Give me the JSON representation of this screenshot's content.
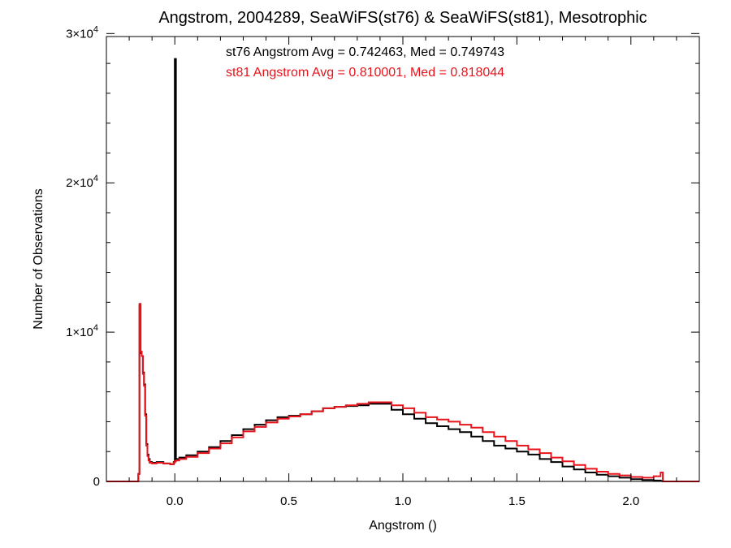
{
  "chart_data": {
    "type": "histogram",
    "title": "Angstrom, 2004289, SeaWiFS(st76) & SeaWiFS(st81), Mesotrophic",
    "xlabel": "Angstrom ()",
    "ylabel": "Number of Observations",
    "xlim": [
      -0.3,
      2.3
    ],
    "ylim": [
      0,
      30000
    ],
    "x_ticks": [
      {
        "value": 0.0,
        "label": "0.0"
      },
      {
        "value": 0.5,
        "label": "0.5"
      },
      {
        "value": 1.0,
        "label": "1.0"
      },
      {
        "value": 1.5,
        "label": "1.5"
      },
      {
        "value": 2.0,
        "label": "2.0"
      }
    ],
    "y_ticks": [
      {
        "value": 0,
        "label": "0"
      },
      {
        "value": 10000,
        "label": "1×10",
        "exp": "4"
      },
      {
        "value": 20000,
        "label": "2×10",
        "exp": "4"
      },
      {
        "value": 30000,
        "label": "3×10",
        "exp": "4"
      }
    ],
    "annotations": [
      {
        "text": "st76 Angstrom Avg = 0.742463, Med = 0.749743",
        "color": "#000000"
      },
      {
        "text": "st81 Angstrom Avg = 0.810001, Med = 0.818044",
        "color": "#e8141c"
      }
    ],
    "series": [
      {
        "color": "#000000",
        "x": [
          -0.3,
          -0.17,
          -0.16,
          -0.155,
          -0.15,
          -0.145,
          -0.14,
          -0.135,
          -0.13,
          -0.125,
          -0.12,
          -0.115,
          -0.11,
          -0.1,
          -0.08,
          -0.05,
          -0.02,
          -0.005,
          0.0,
          0.005,
          0.02,
          0.05,
          0.1,
          0.15,
          0.2,
          0.25,
          0.3,
          0.35,
          0.4,
          0.45,
          0.5,
          0.55,
          0.6,
          0.65,
          0.7,
          0.75,
          0.8,
          0.85,
          0.9,
          0.95,
          1.0,
          1.05,
          1.1,
          1.15,
          1.2,
          1.25,
          1.3,
          1.35,
          1.4,
          1.45,
          1.5,
          1.55,
          1.6,
          1.65,
          1.7,
          1.75,
          1.8,
          1.85,
          1.9,
          1.95,
          2.0,
          2.05,
          2.1,
          2.13,
          2.14,
          2.15,
          2.3
        ],
        "y": [
          0,
          0,
          500,
          11800,
          8600,
          8400,
          7300,
          6500,
          4500,
          2500,
          1800,
          1500,
          1300,
          1250,
          1300,
          1200,
          1150,
          1300,
          28300,
          1500,
          1600,
          1750,
          2000,
          2300,
          2700,
          3100,
          3500,
          3800,
          4100,
          4300,
          4400,
          4500,
          4700,
          4900,
          5000,
          5050,
          5100,
          5200,
          5200,
          4800,
          4500,
          4200,
          3900,
          3700,
          3500,
          3300,
          3000,
          2700,
          2400,
          2200,
          2000,
          1800,
          1500,
          1300,
          1000,
          800,
          600,
          450,
          350,
          250,
          150,
          100,
          60,
          40,
          0,
          0,
          0
        ]
      },
      {
        "color": "#e8141c",
        "x": [
          -0.3,
          -0.17,
          -0.16,
          -0.155,
          -0.15,
          -0.145,
          -0.14,
          -0.135,
          -0.13,
          -0.125,
          -0.12,
          -0.115,
          -0.11,
          -0.1,
          -0.08,
          -0.05,
          -0.02,
          -0.005,
          0.0,
          0.005,
          0.02,
          0.05,
          0.1,
          0.15,
          0.2,
          0.25,
          0.3,
          0.35,
          0.4,
          0.45,
          0.5,
          0.55,
          0.6,
          0.65,
          0.7,
          0.75,
          0.8,
          0.85,
          0.9,
          0.95,
          1.0,
          1.05,
          1.1,
          1.15,
          1.2,
          1.25,
          1.3,
          1.35,
          1.4,
          1.45,
          1.5,
          1.55,
          1.6,
          1.65,
          1.7,
          1.75,
          1.8,
          1.85,
          1.9,
          1.95,
          2.0,
          2.05,
          2.1,
          2.13,
          2.14,
          2.15,
          2.3
        ],
        "y": [
          0,
          0,
          500,
          11900,
          8700,
          8400,
          7200,
          6400,
          4400,
          2400,
          1700,
          1400,
          1250,
          1200,
          1250,
          1200,
          1150,
          1250,
          1350,
          1400,
          1500,
          1650,
          1900,
          2200,
          2550,
          2950,
          3350,
          3650,
          3950,
          4200,
          4350,
          4500,
          4700,
          4900,
          5000,
          5100,
          5200,
          5300,
          5300,
          5100,
          4900,
          4600,
          4300,
          4150,
          4000,
          3800,
          3600,
          3300,
          3000,
          2700,
          2400,
          2150,
          1900,
          1600,
          1350,
          1100,
          850,
          650,
          500,
          400,
          300,
          250,
          350,
          600,
          0,
          0,
          0
        ]
      }
    ]
  }
}
